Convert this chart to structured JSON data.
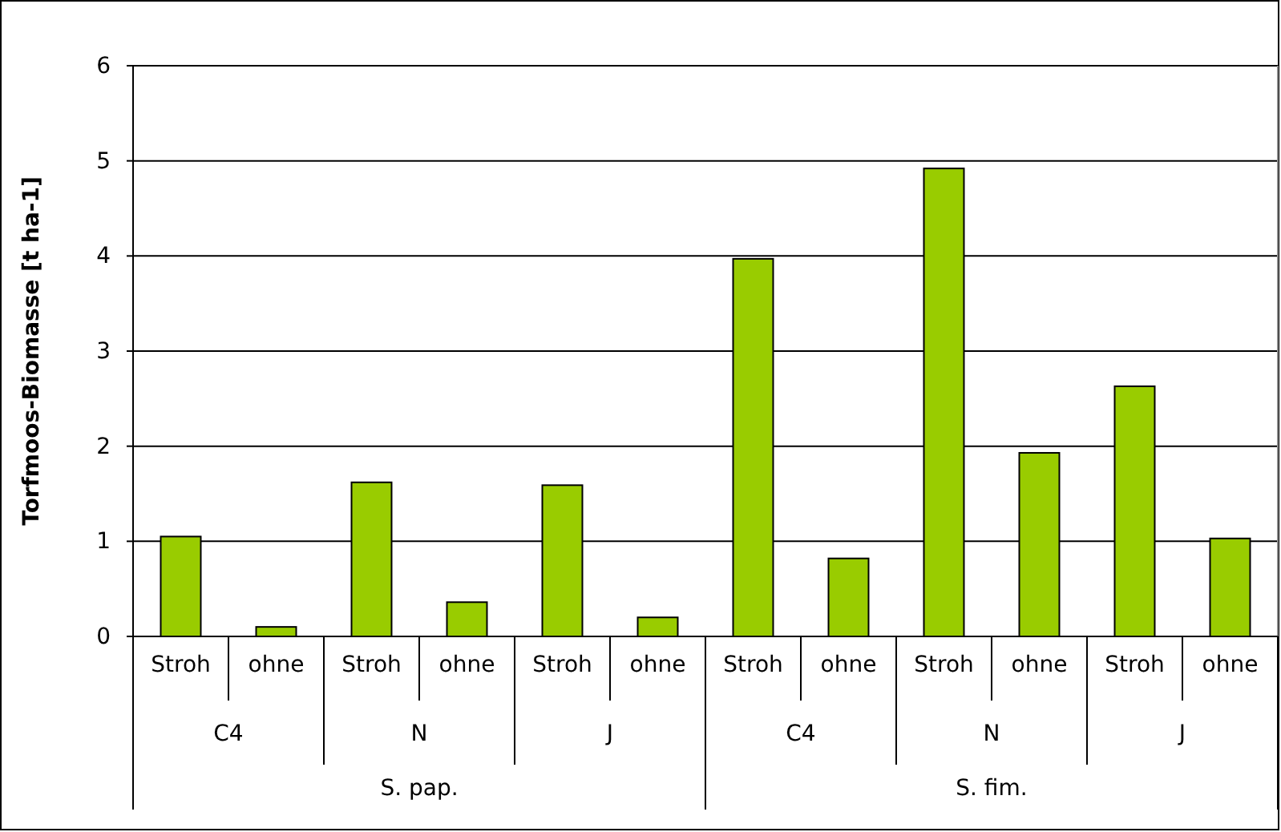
{
  "chart_data": {
    "type": "bar",
    "ylabel": "Torfmoos-Biomasse [t ha-1]",
    "categories": [
      "Stroh",
      "ohne",
      "Stroh",
      "ohne",
      "Stroh",
      "ohne",
      "Stroh",
      "ohne",
      "Stroh",
      "ohne",
      "Stroh",
      "ohne"
    ],
    "values": [
      1.05,
      0.1,
      1.62,
      0.36,
      1.59,
      0.2,
      3.97,
      0.82,
      4.92,
      1.93,
      2.63,
      1.03
    ],
    "color": "#99cc00",
    "annotations": [
      "C4",
      "N",
      "J",
      "C4",
      "N",
      "J",
      "S. pap.",
      "S. fim."
    ],
    "ylim": [
      0,
      6
    ],
    "yticks": [
      0,
      1,
      2,
      3,
      4,
      5,
      6
    ],
    "grid": "y"
  }
}
